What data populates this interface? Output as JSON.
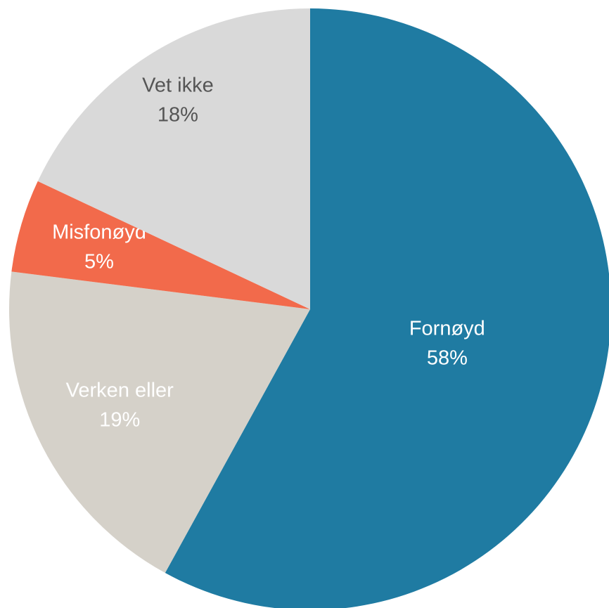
{
  "chart_data": {
    "type": "pie",
    "categories": [
      "Fornøyd",
      "Verken eller",
      "Misfonøyd",
      "Vet ikke"
    ],
    "values": [
      58,
      19,
      5,
      18
    ],
    "value_labels": [
      "58%",
      "19%",
      "5%",
      "18%"
    ],
    "colors": [
      "#1f7ba2",
      "#d5d1c9",
      "#f26a4b",
      "#d9d9d9"
    ],
    "label_colors": [
      "#ffffff",
      "#ffffff",
      "#ffffff",
      "#555555"
    ]
  }
}
